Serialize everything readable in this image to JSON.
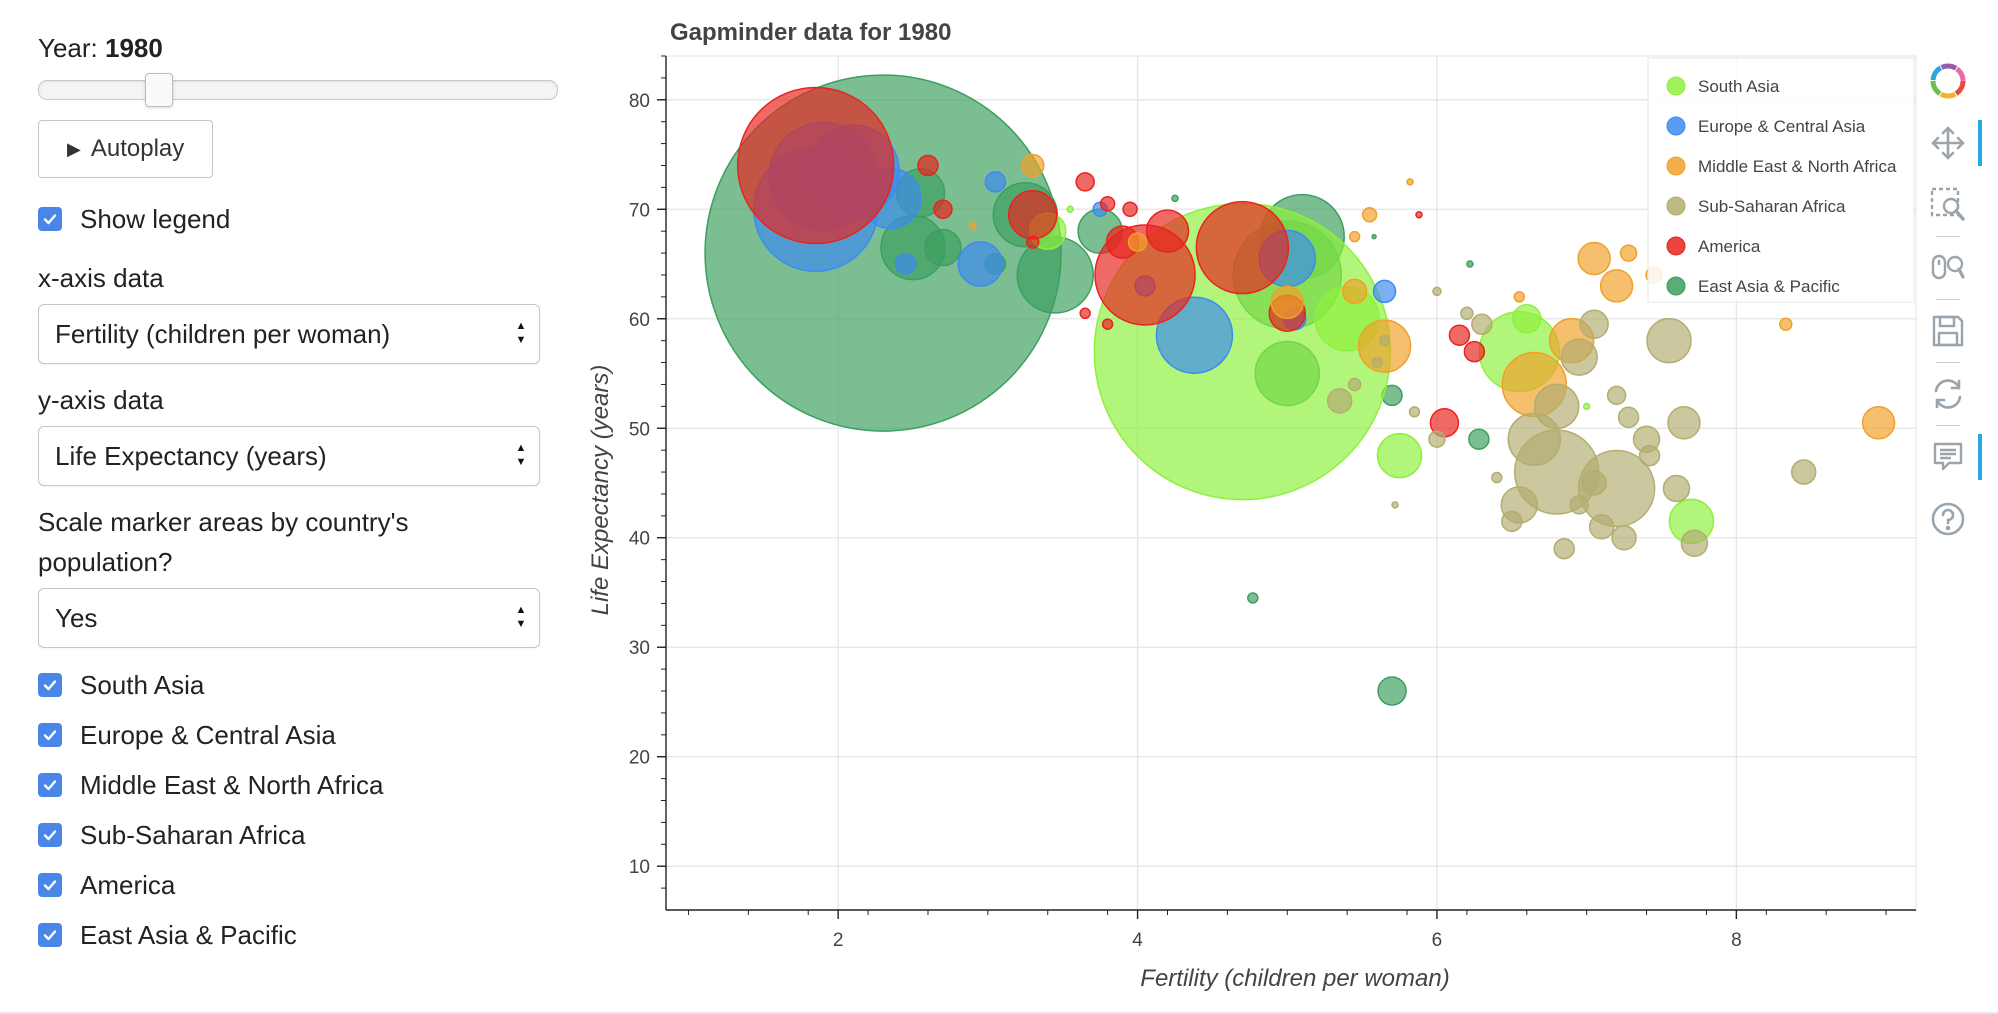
{
  "controls": {
    "year_label": "Year:",
    "year_value": "1980",
    "slider_fraction": 0.23,
    "autoplay_label": "Autoplay",
    "show_legend_label": "Show legend",
    "x_axis_label": "x-axis data",
    "x_axis_selected": "Fertility (children per woman)",
    "y_axis_label": "y-axis data",
    "y_axis_selected": "Life Expectancy (years)",
    "scale_label": "Scale marker areas by country's population?",
    "scale_selected": "Yes",
    "regions": [
      {
        "label": "South Asia",
        "checked": true
      },
      {
        "label": "Europe & Central Asia",
        "checked": true
      },
      {
        "label": "Middle East & North Africa",
        "checked": true
      },
      {
        "label": "Sub-Saharan Africa",
        "checked": true
      },
      {
        "label": "America",
        "checked": true
      },
      {
        "label": "East Asia & Pacific",
        "checked": true
      }
    ]
  },
  "toolbar": {
    "icons": [
      "bokeh-logo-icon",
      "pan-icon",
      "box-zoom-icon",
      "wheel-zoom-icon",
      "save-icon",
      "reset-icon",
      "hover-icon",
      "help-icon"
    ]
  },
  "chart_data": {
    "type": "scatter",
    "title": "Gapminder data for 1980",
    "xlabel": "Fertility (children per woman)",
    "ylabel": "Life Expectancy (years)",
    "xlim": [
      0.85,
      9.2
    ],
    "ylim": [
      6,
      84
    ],
    "xticks": [
      2,
      4,
      6,
      8
    ],
    "yticks": [
      10,
      20,
      30,
      40,
      50,
      60,
      70,
      80
    ],
    "grid": true,
    "legend_position": "top-right",
    "colors": {
      "South Asia": "#8ef03c",
      "Europe & Central Asia": "#3d8bf0",
      "Middle East & North Africa": "#f0a12a",
      "Sub-Saharan Africa": "#b3ad70",
      "America": "#e8241f",
      "East Asia & Pacific": "#3c9f5f"
    },
    "series": [
      {
        "name": "East Asia & Pacific",
        "points": [
          [
            2.3,
            66,
            178
          ],
          [
            5.0,
            64,
            54
          ],
          [
            5.1,
            67.5,
            42
          ],
          [
            3.25,
            69.5,
            32
          ],
          [
            3.45,
            64,
            38
          ],
          [
            3.75,
            68,
            22
          ],
          [
            2.5,
            66.5,
            32
          ],
          [
            2.55,
            71.5,
            24
          ],
          [
            2.7,
            66.5,
            18
          ],
          [
            5.0,
            55,
            32
          ],
          [
            5.7,
            26,
            14
          ],
          [
            5.7,
            53,
            10
          ],
          [
            6.28,
            49,
            10
          ],
          [
            4.77,
            34.5,
            5
          ],
          [
            3.05,
            65,
            10
          ],
          [
            4.25,
            71,
            3
          ],
          [
            6.22,
            65,
            3
          ],
          [
            5.58,
            67.5,
            2
          ]
        ]
      },
      {
        "name": "South Asia",
        "points": [
          [
            4.7,
            57,
            148
          ],
          [
            6.55,
            57,
            40
          ],
          [
            5.4,
            60,
            32
          ],
          [
            7.7,
            41.5,
            22
          ],
          [
            5.75,
            47.5,
            22
          ],
          [
            3.4,
            68,
            18
          ],
          [
            6.6,
            60,
            14
          ],
          [
            7.0,
            52,
            3
          ],
          [
            3.55,
            70,
            3
          ]
        ]
      },
      {
        "name": "Europe & Central Asia",
        "points": [
          [
            1.85,
            70,
            62
          ],
          [
            1.9,
            73,
            54
          ],
          [
            2.1,
            73.5,
            46
          ],
          [
            2.35,
            71,
            30
          ],
          [
            4.38,
            58.5,
            38
          ],
          [
            5.0,
            65.5,
            28
          ],
          [
            2.95,
            65,
            22
          ],
          [
            3.05,
            72.5,
            10
          ],
          [
            5.65,
            62.5,
            11
          ],
          [
            2.45,
            65,
            10
          ],
          [
            4.05,
            63,
            10
          ],
          [
            5.05,
            60,
            11
          ],
          [
            3.75,
            70,
            7
          ]
        ]
      },
      {
        "name": "America",
        "points": [
          [
            1.85,
            74,
            78
          ],
          [
            4.7,
            66.5,
            46
          ],
          [
            4.05,
            64,
            50
          ],
          [
            2.6,
            74,
            10
          ],
          [
            2.7,
            70,
            9
          ],
          [
            3.3,
            69.5,
            24
          ],
          [
            3.65,
            72.5,
            9
          ],
          [
            3.8,
            70.5,
            7
          ],
          [
            3.95,
            70,
            7
          ],
          [
            3.9,
            67,
            16
          ],
          [
            4.2,
            68,
            21
          ],
          [
            5.0,
            60.5,
            18
          ],
          [
            6.05,
            50.5,
            14
          ],
          [
            6.15,
            58.5,
            10
          ],
          [
            6.25,
            57,
            10
          ],
          [
            3.8,
            59.5,
            5
          ],
          [
            3.3,
            67,
            6
          ],
          [
            3.65,
            60.5,
            5
          ],
          [
            5.88,
            69.5,
            3
          ]
        ]
      },
      {
        "name": "Middle East & North Africa",
        "points": [
          [
            6.65,
            54,
            32
          ],
          [
            5.65,
            57.5,
            26
          ],
          [
            6.9,
            58,
            22
          ],
          [
            7.05,
            65.5,
            16
          ],
          [
            7.2,
            63,
            16
          ],
          [
            8.95,
            50.5,
            16
          ],
          [
            7.28,
            66,
            8
          ],
          [
            5.45,
            62.5,
            12
          ],
          [
            5.0,
            61.5,
            16
          ],
          [
            5.55,
            69.5,
            7
          ],
          [
            5.45,
            67.5,
            5
          ],
          [
            3.3,
            74,
            11
          ],
          [
            2.9,
            68.5,
            3
          ],
          [
            8.33,
            59.5,
            6
          ],
          [
            7.45,
            64,
            8
          ],
          [
            5.82,
            72.5,
            3
          ],
          [
            4.0,
            67,
            9
          ],
          [
            6.55,
            62,
            5
          ]
        ]
      },
      {
        "name": "Sub-Saharan Africa",
        "points": [
          [
            6.8,
            46,
            42
          ],
          [
            7.2,
            44.5,
            38
          ],
          [
            6.65,
            49,
            26
          ],
          [
            6.8,
            52,
            22
          ],
          [
            6.95,
            56.5,
            18
          ],
          [
            7.05,
            59.5,
            14
          ],
          [
            7.55,
            58,
            22
          ],
          [
            7.65,
            50.5,
            16
          ],
          [
            7.6,
            44.5,
            13
          ],
          [
            7.4,
            49,
            13
          ],
          [
            7.28,
            51,
            10
          ],
          [
            7.2,
            53,
            9
          ],
          [
            7.42,
            47.5,
            10
          ],
          [
            7.05,
            45,
            12
          ],
          [
            6.95,
            43,
            9
          ],
          [
            7.1,
            41,
            12
          ],
          [
            7.25,
            40,
            12
          ],
          [
            7.72,
            39.5,
            13
          ],
          [
            6.85,
            39,
            10
          ],
          [
            6.55,
            43,
            18
          ],
          [
            6.5,
            41.5,
            10
          ],
          [
            8.45,
            46,
            12
          ],
          [
            6.4,
            45.5,
            5
          ],
          [
            6.0,
            49,
            8
          ],
          [
            5.85,
            51.5,
            5
          ],
          [
            6.3,
            59.5,
            10
          ],
          [
            6.2,
            60.5,
            6
          ],
          [
            5.35,
            52.5,
            12
          ],
          [
            5.45,
            54,
            6
          ],
          [
            5.6,
            56,
            5
          ],
          [
            5.65,
            58,
            5
          ],
          [
            5.72,
            43,
            3
          ],
          [
            6.0,
            62.5,
            4
          ]
        ]
      }
    ]
  }
}
